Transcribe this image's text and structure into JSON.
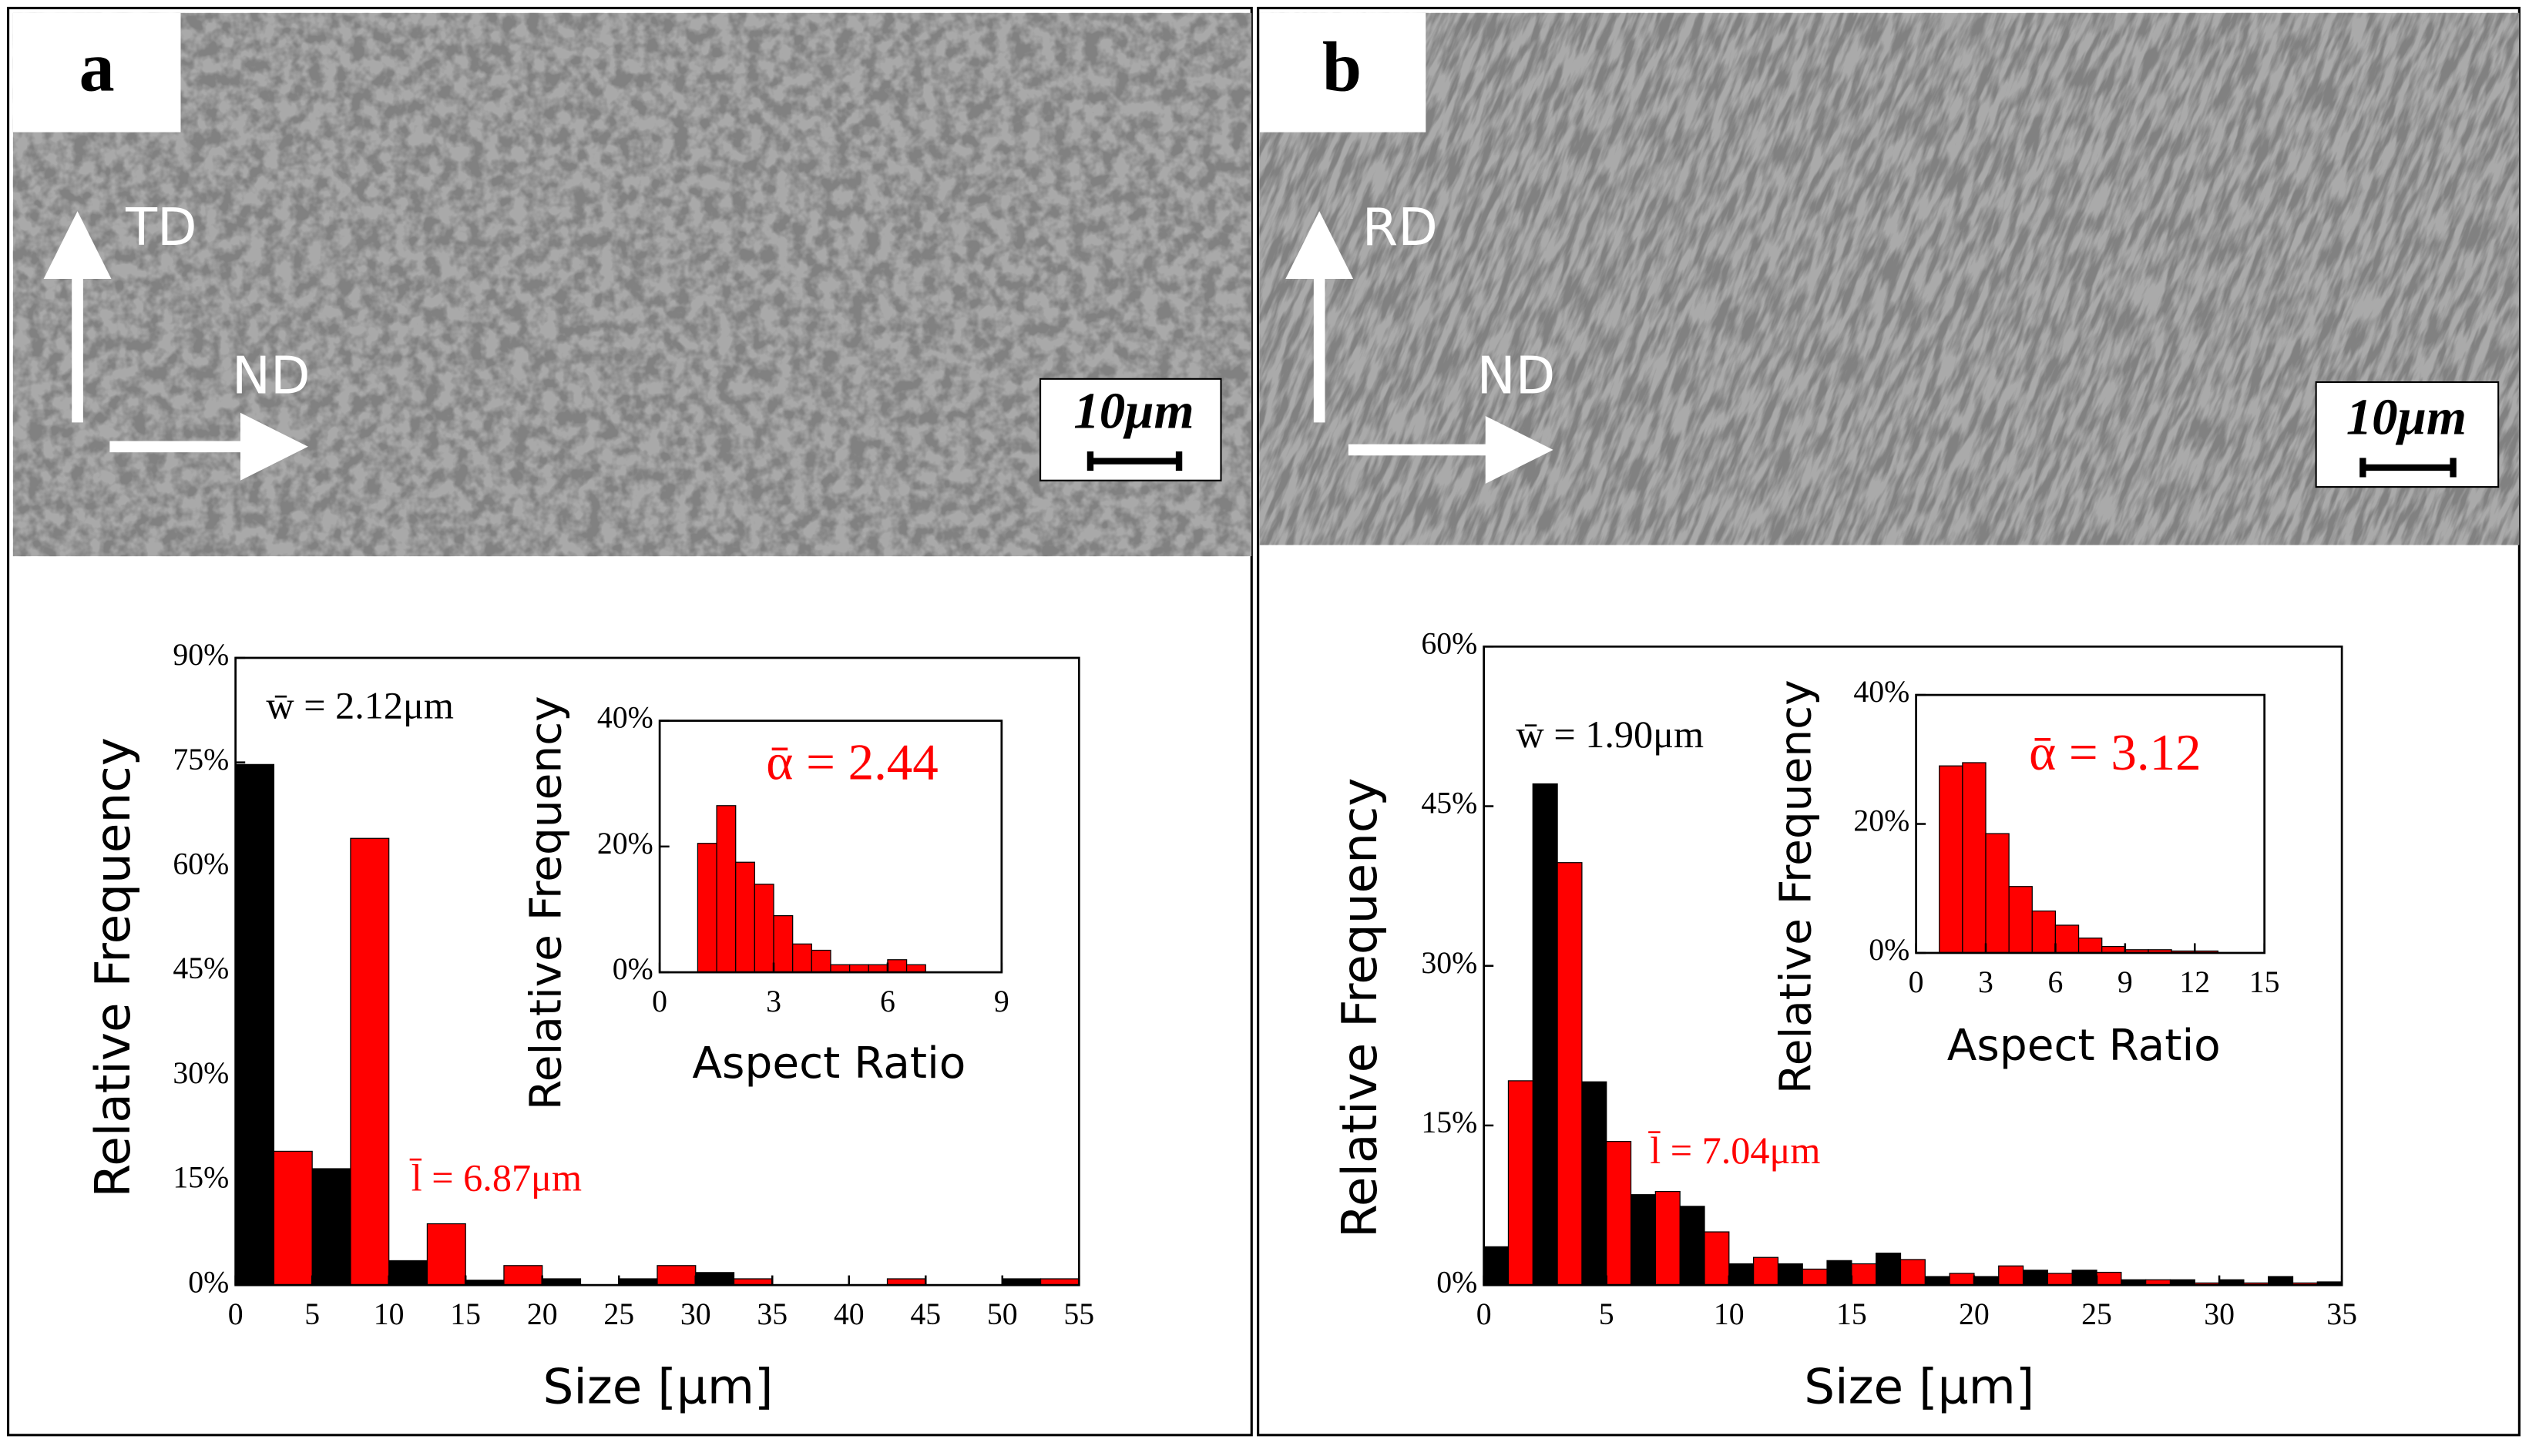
{
  "panels": [
    {
      "label": "a",
      "arrows": [
        "TD",
        "ND"
      ],
      "scale_bar": "10μm"
    },
    {
      "label": "b",
      "arrows": [
        "RD",
        "ND"
      ],
      "scale_bar": "10μm"
    }
  ],
  "chart_data": [
    {
      "type": "histogram",
      "xlabel": "Size [μm]",
      "ylabel": "Relative Frequency",
      "xlim": [
        0,
        55
      ],
      "xticks": [
        0,
        5,
        10,
        15,
        20,
        25,
        30,
        35,
        40,
        45,
        50,
        55
      ],
      "ylim": [
        0,
        90
      ],
      "yticks": [
        {
          "value": 0,
          "label": "0%"
        },
        {
          "value": 15,
          "label": "15%"
        },
        {
          "value": 30,
          "label": "30%"
        },
        {
          "value": 45,
          "label": "45%"
        },
        {
          "value": 60,
          "label": "60%"
        },
        {
          "value": 75,
          "label": "75%"
        },
        {
          "value": 90,
          "label": "90%"
        }
      ],
      "bins": [
        0,
        5,
        10,
        15,
        20,
        25,
        30,
        35,
        40,
        45,
        50,
        55
      ],
      "series": [
        {
          "color": "#000000",
          "values": [
            74.7,
            16.7,
            3.5,
            0.7,
            0.9,
            0.9,
            1.8,
            0,
            0,
            0,
            0.9
          ]
        },
        {
          "color": "#ff0000",
          "values": [
            19.2,
            64.1,
            8.8,
            2.8,
            0,
            2.8,
            0.9,
            0,
            0.9,
            0,
            0.9
          ]
        }
      ],
      "annotations": [
        {
          "text": "w̄ = 2.12μm",
          "color": "#000000"
        },
        {
          "text": "l̄ = 6.87μm",
          "color": "#ff0000"
        }
      ]
    },
    {
      "type": "histogram",
      "xlabel": "Aspect Ratio",
      "ylabel": "Relative Frequency",
      "xlim": [
        0,
        9
      ],
      "xticks": [
        0,
        3,
        6,
        9
      ],
      "ylim": [
        0,
        40
      ],
      "yticks": [
        {
          "value": 0,
          "label": "0%"
        },
        {
          "value": 20,
          "label": "20%"
        },
        {
          "value": 40,
          "label": "40%"
        }
      ],
      "bins": [
        1,
        1.5,
        2,
        2.5,
        3,
        3.5,
        4,
        4.5,
        5,
        5.5,
        6,
        6.5,
        7
      ],
      "series": [
        {
          "color": "#ff0000",
          "values": [
            20.5,
            26.5,
            17.5,
            14,
            9,
            4.5,
            3.5,
            1.2,
            1.2,
            1.2,
            2,
            1.2
          ]
        }
      ],
      "annotations": [
        {
          "text": "ᾱ = 2.44",
          "color": "#ff0000"
        }
      ]
    },
    {
      "type": "histogram",
      "xlabel": "Size [μm]",
      "ylabel": "Relative Frequency",
      "xlim": [
        0,
        35
      ],
      "xticks": [
        0,
        5,
        10,
        15,
        20,
        25,
        30,
        35
      ],
      "ylim": [
        0,
        60
      ],
      "yticks": [
        {
          "value": 0,
          "label": "0%"
        },
        {
          "value": 15,
          "label": "15%"
        },
        {
          "value": 30,
          "label": "30%"
        },
        {
          "value": 45,
          "label": "45%"
        },
        {
          "value": 60,
          "label": "60%"
        }
      ],
      "bins": [
        0,
        2,
        4,
        6,
        8,
        10,
        12,
        14,
        16,
        18,
        20,
        22,
        24,
        26,
        28,
        30,
        32,
        34,
        36
      ],
      "series": [
        {
          "color": "#000000",
          "values": [
            3.6,
            47.1,
            19.1,
            8.5,
            7.4,
            2,
            2,
            2.3,
            3,
            0.8,
            0.8,
            1.4,
            1.4,
            0.5,
            0.5,
            0.5,
            0.8,
            0.3
          ]
        },
        {
          "color": "#ff0000",
          "values": [
            19.2,
            39.7,
            13.5,
            8.8,
            5,
            2.6,
            1.5,
            2,
            2.4,
            1.1,
            1.8,
            1.1,
            1.2,
            0.5,
            0.2,
            0.2,
            0.2,
            0
          ]
        }
      ],
      "annotations": [
        {
          "text": "w̄ = 1.90μm",
          "color": "#000000"
        },
        {
          "text": "l̄ = 7.04μm",
          "color": "#ff0000"
        }
      ]
    },
    {
      "type": "histogram",
      "xlabel": "Aspect Ratio",
      "ylabel": "Relative Frequency",
      "xlim": [
        0,
        15
      ],
      "xticks": [
        0,
        3,
        6,
        9,
        12,
        15
      ],
      "ylim": [
        0,
        40
      ],
      "yticks": [
        {
          "value": 0,
          "label": "0%"
        },
        {
          "value": 20,
          "label": "20%"
        },
        {
          "value": 40,
          "label": "40%"
        }
      ],
      "bins": [
        1,
        2,
        3,
        4,
        5,
        6,
        7,
        8,
        9,
        10,
        11,
        12,
        13
      ],
      "series": [
        {
          "color": "#ff0000",
          "values": [
            29,
            29.5,
            18.5,
            10.3,
            6.5,
            4.3,
            2.3,
            1,
            0.5,
            0.5,
            0.3,
            0.3
          ]
        }
      ],
      "annotations": [
        {
          "text": "ᾱ = 3.12",
          "color": "#ff0000"
        }
      ]
    }
  ]
}
